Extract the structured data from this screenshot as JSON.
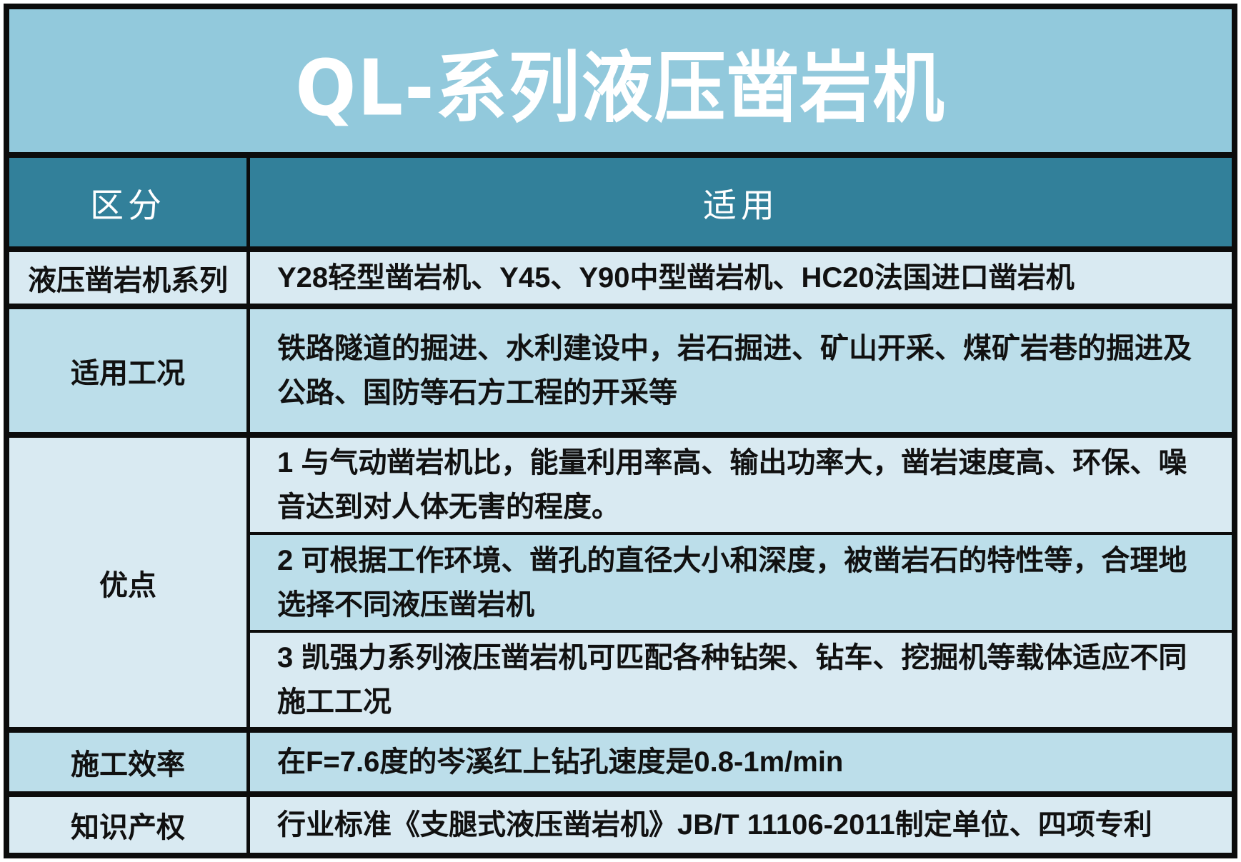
{
  "title": "QL-系列液压凿岩机",
  "colors": {
    "title_background": "#92c9dc",
    "header_background": "#32809a",
    "row_light": "#d9eaf2",
    "row_dark": "#bcdeea",
    "border": "#0c0c0c",
    "title_text": "#ffffff",
    "body_text": "#111111"
  },
  "header": {
    "category": "区分",
    "application": "适用"
  },
  "series_row": {
    "label": "液压凿岩机系列",
    "content": "Y28轻型凿岩机、Y45、Y90中型凿岩机、HC20法国进口凿岩机"
  },
  "condition_row": {
    "label": "适用工况",
    "content": "铁路隧道的掘进、水利建设中，岩石掘进、矿山开采、煤矿岩巷的掘进及公路、国防等石方工程的开采等"
  },
  "advantage_row": {
    "label": "优点",
    "item1": "1 与气动凿岩机比，能量利用率高、输出功率大，凿岩速度高、环保、噪音达到对人体无害的程度。",
    "item2": "2 可根据工作环境、凿孔的直径大小和深度，被凿岩石的特性等，合理地选择不同液压凿岩机",
    "item3": "3 凯强力系列液压凿岩机可匹配各种钻架、钻车、挖掘机等载体适应不同施工工况"
  },
  "efficiency_row": {
    "label": "施工效率",
    "content": "在F=7.6度的岑溪红上钻孔速度是0.8-1m/min"
  },
  "ip_row": {
    "label": "知识产权",
    "content": "行业标准《支腿式液压凿岩机》JB/T 11106-2011制定单位、四项专利"
  }
}
